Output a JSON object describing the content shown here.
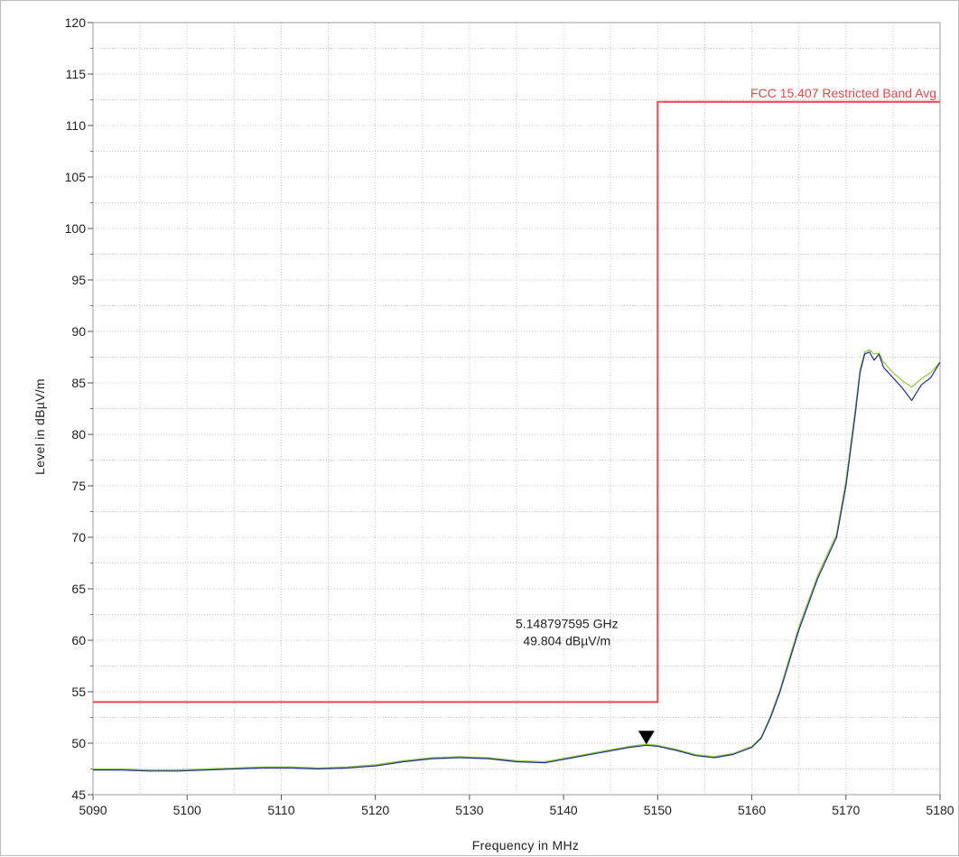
{
  "chart_data": {
    "type": "line",
    "xlabel": "Frequency in MHz",
    "ylabel": "Level in dBµV/m",
    "xlim": [
      5090,
      5180
    ],
    "ylim": [
      45,
      120
    ],
    "x_ticks": [
      5090,
      5100,
      5110,
      5120,
      5130,
      5140,
      5150,
      5160,
      5170,
      5180
    ],
    "y_ticks": [
      45,
      50,
      55,
      60,
      65,
      70,
      75,
      80,
      85,
      90,
      95,
      100,
      105,
      110,
      115,
      120
    ],
    "grid": true,
    "limit_line": {
      "label": "FCC 15.407 Restricted Band Avg",
      "color": "#e8474c",
      "x": [
        5090,
        5150,
        5150,
        5180
      ],
      "y": [
        54,
        54,
        112.3,
        112.3
      ]
    },
    "series": [
      {
        "color": "#1d2f8f",
        "x": [
          5090,
          5093,
          5096,
          5099,
          5102,
          5105,
          5108,
          5111,
          5114,
          5117,
          5120,
          5123,
          5126,
          5129,
          5132,
          5135,
          5138,
          5141,
          5144,
          5147,
          5148.8,
          5150,
          5152,
          5154,
          5156,
          5158,
          5160,
          5161,
          5162,
          5163,
          5164,
          5165,
          5166,
          5167,
          5168,
          5169,
          5170,
          5171,
          5171.5,
          5172,
          5172.5,
          5173,
          5173.5,
          5174,
          5175,
          5176,
          5177,
          5178,
          5179,
          5180
        ],
        "y": [
          47.4,
          47.4,
          47.3,
          47.3,
          47.4,
          47.5,
          47.6,
          47.6,
          47.5,
          47.6,
          47.8,
          48.2,
          48.5,
          48.6,
          48.5,
          48.2,
          48.1,
          48.6,
          49.1,
          49.6,
          49.8,
          49.7,
          49.3,
          48.8,
          48.6,
          48.9,
          49.6,
          50.5,
          52.5,
          55.0,
          58.0,
          61.0,
          63.5,
          66.0,
          68.0,
          70.0,
          75.0,
          82.0,
          86.0,
          87.8,
          88.0,
          87.2,
          87.8,
          86.5,
          85.5,
          84.5,
          83.3,
          84.8,
          85.5,
          87.0
        ]
      },
      {
        "color": "#8fc93a",
        "x": [
          5090,
          5093,
          5096,
          5099,
          5102,
          5105,
          5108,
          5111,
          5114,
          5117,
          5120,
          5123,
          5126,
          5129,
          5132,
          5135,
          5138,
          5141,
          5144,
          5147,
          5148.8,
          5150,
          5152,
          5154,
          5156,
          5158,
          5160,
          5161,
          5162,
          5163,
          5164,
          5165,
          5166,
          5167,
          5168,
          5169,
          5170,
          5171,
          5171.5,
          5172,
          5172.5,
          5173,
          5173.5,
          5174,
          5175,
          5176,
          5177,
          5178,
          5179,
          5180
        ],
        "y": [
          47.5,
          47.5,
          47.4,
          47.4,
          47.5,
          47.6,
          47.7,
          47.7,
          47.6,
          47.7,
          47.9,
          48.3,
          48.6,
          48.7,
          48.6,
          48.3,
          48.2,
          48.7,
          49.2,
          49.7,
          49.9,
          49.8,
          49.4,
          48.9,
          48.7,
          49.0,
          49.7,
          50.6,
          52.7,
          55.2,
          58.3,
          61.3,
          63.8,
          66.3,
          68.3,
          70.3,
          75.5,
          82.5,
          86.3,
          88.0,
          88.2,
          87.8,
          87.9,
          87.0,
          86.0,
          85.2,
          84.6,
          85.4,
          86.0,
          87.0
        ]
      }
    ],
    "marker": {
      "x": 5148.797595,
      "y": 49.804,
      "freq_text": "5.148797595 GHz",
      "level_text": "49.804 dBµV/m"
    }
  }
}
